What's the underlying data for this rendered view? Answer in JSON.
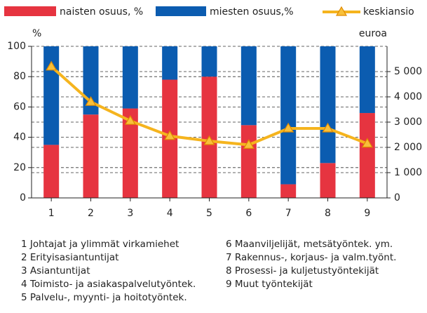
{
  "chart_data": {
    "type": "bar_line",
    "categories": [
      "1",
      "2",
      "3",
      "4",
      "5",
      "6",
      "7",
      "8",
      "9"
    ],
    "series": [
      {
        "name": "naisten osuus, %",
        "color": "#e63440",
        "values": [
          35,
          55,
          59,
          78,
          80,
          48,
          9,
          23,
          56
        ]
      },
      {
        "name": "miesten osuus,%",
        "color": "#0b5cb0",
        "values": [
          65,
          45,
          41,
          22,
          20,
          52,
          91,
          77,
          44
        ]
      },
      {
        "name": "keskiansio",
        "color": "#f5b41e",
        "axis": "y2",
        "values": [
          5200,
          3800,
          3050,
          2450,
          2250,
          2100,
          2750,
          2750,
          2150
        ]
      }
    ],
    "ylabel": "%",
    "y2label": "euroa",
    "ylim": [
      0,
      100
    ],
    "yticks": [
      0,
      20,
      40,
      60,
      80,
      100
    ],
    "y2lim": [
      0,
      6000
    ],
    "y2ticks": [
      0,
      {
        "value": 1000,
        "label": "1 000"
      },
      {
        "value": 2000,
        "label": "2 000"
      },
      {
        "value": 3000,
        "label": "3 000"
      },
      {
        "value": 4000,
        "label": "4 000"
      },
      {
        "value": 5000,
        "label": "5 000"
      }
    ],
    "grid": true,
    "footnotes": [
      "1 Johtajat ja ylimmät virkamiehet",
      "2 Erityisasiantuntijat",
      "3 Asiantuntijat",
      "4 Toimisto- ja asiakaspalvelutyöntek.",
      "5 Palvelu-, myynti- ja hoitotyöntek.",
      "6 Maanviljelijät, metsätyöntek. ym.",
      "7 Rakennus-, korjaus- ja valm.työnt.",
      "8 Prosessi- ja kuljetustyöntekijät",
      "9 Muut työntekijät"
    ]
  }
}
